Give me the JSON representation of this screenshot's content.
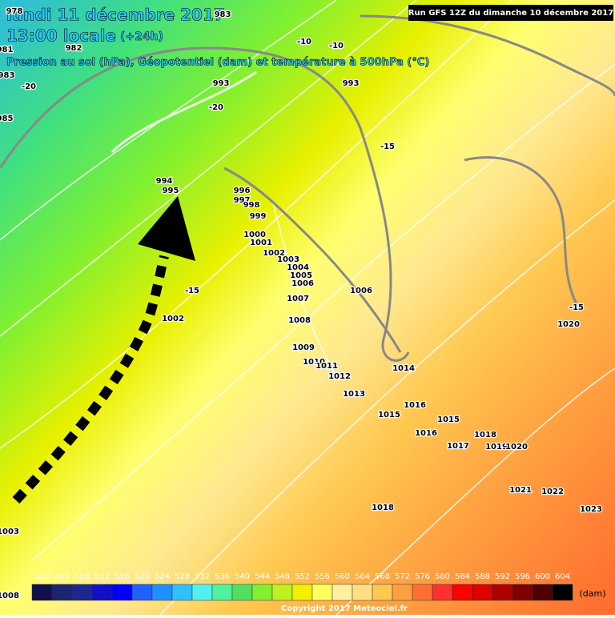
{
  "header": {
    "date": "lundi 11 décembre 2017",
    "time": "13:00 locale",
    "lead": "(+24h)",
    "subtitle": "Pression au sol (hPa), Géopotentiel (dam) et température à 500hPa (°C)"
  },
  "run": "Run GFS 12Z du dimanche 10 décembre 2017",
  "map_labels": [
    "983",
    "978",
    "981",
    "982",
    "983",
    "985",
    "993",
    "993",
    "994",
    "995",
    "996",
    "997",
    "998",
    "999",
    "1000",
    "1001",
    "1002",
    "1003",
    "1004",
    "1005",
    "1006",
    "1006",
    "1007",
    "1008",
    "1009",
    "1010",
    "1011",
    "1012",
    "1013",
    "1014",
    "1015",
    "1016",
    "1015",
    "1016",
    "1017",
    "1018",
    "1019",
    "1020",
    "1020",
    "1021",
    "1022",
    "1023",
    "1018",
    "1002",
    "1003",
    "1008",
    "-20",
    "-20",
    "-10",
    "-10",
    "-15",
    "-15",
    "-15"
  ],
  "legend": {
    "values": [
      500,
      504,
      508,
      512,
      516,
      520,
      524,
      528,
      532,
      536,
      540,
      544,
      548,
      552,
      556,
      560,
      564,
      568,
      572,
      576,
      580,
      584,
      588,
      592,
      596,
      600,
      604
    ],
    "colors": [
      "#10104a",
      "#1a2470",
      "#1a2890",
      "#1010c8",
      "#0000ff",
      "#2060ff",
      "#1e90ff",
      "#30c0ff",
      "#50f0f0",
      "#50f0a0",
      "#50e060",
      "#80f030",
      "#c0f020",
      "#f0f000",
      "#ffff60",
      "#fff0a0",
      "#ffe080",
      "#ffc850",
      "#ffa040",
      "#ff7030",
      "#ff3030",
      "#ff0000",
      "#e00000",
      "#b00000",
      "#800000",
      "#500000",
      "#000000"
    ],
    "unit": "(dam)"
  },
  "copyright": "Copyright 2017 Meteociel.fr"
}
